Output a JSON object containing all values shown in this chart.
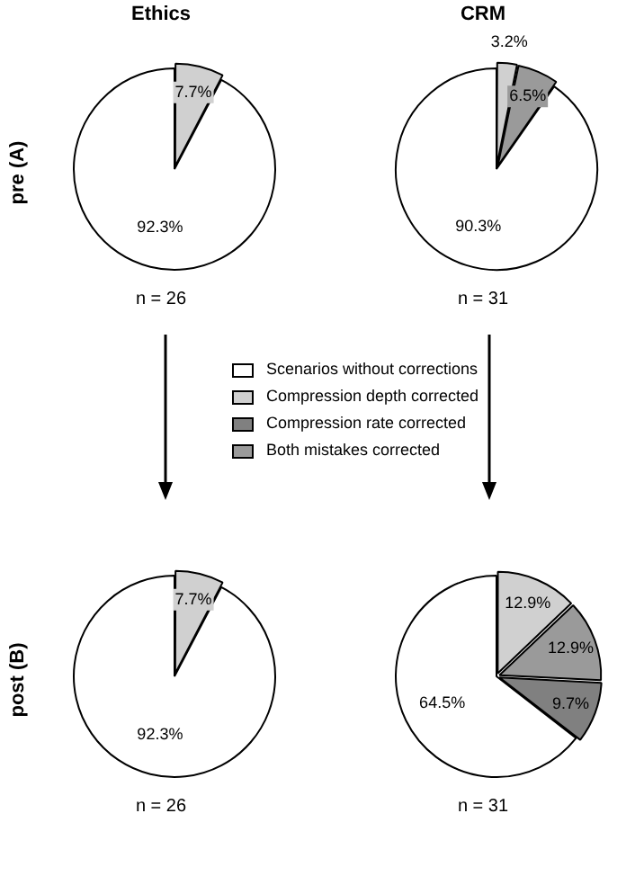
{
  "chart_data": [
    {
      "type": "pie",
      "title": "Ethics",
      "ylabel": "pre (A)",
      "categories": [
        null,
        null
      ],
      "values": [
        7.7,
        92.3
      ],
      "colors": [
        "#d0d0d0",
        "#ffffff"
      ],
      "value_labels": [
        "7.7%",
        "92.3%"
      ],
      "annotations": [
        "n = 26"
      ]
    },
    {
      "type": "pie",
      "title": "CRM",
      "categories": [
        null,
        null,
        null
      ],
      "values": [
        3.2,
        6.5,
        90.3
      ],
      "colors": [
        "#d0d0d0",
        "#9a9a9a",
        "#ffffff"
      ],
      "value_labels": [
        "3.2%",
        "6.5%",
        "90.3%"
      ],
      "annotations": [
        "n = 31"
      ]
    },
    {
      "type": "pie",
      "ylabel": "post (B)",
      "categories": [
        null,
        null
      ],
      "values": [
        7.7,
        92.3
      ],
      "colors": [
        "#d0d0d0",
        "#ffffff"
      ],
      "value_labels": [
        "7.7%",
        "92.3%"
      ],
      "annotations": [
        "n = 26"
      ]
    },
    {
      "type": "pie",
      "categories": [
        "Compression depth corrected",
        "Both mistakes corrected",
        "Compression rate corrected",
        "Scenarios without corrections"
      ],
      "values": [
        12.9,
        12.9,
        9.7,
        64.5
      ],
      "colors": [
        "#d0d0d0",
        "#9a9a9a",
        "#808080",
        "#ffffff"
      ],
      "value_labels": [
        "12.9%",
        "12.9%",
        "9.7%",
        "64.5%"
      ],
      "legend": "top",
      "annotations": [
        "n = 31"
      ]
    }
  ]
}
